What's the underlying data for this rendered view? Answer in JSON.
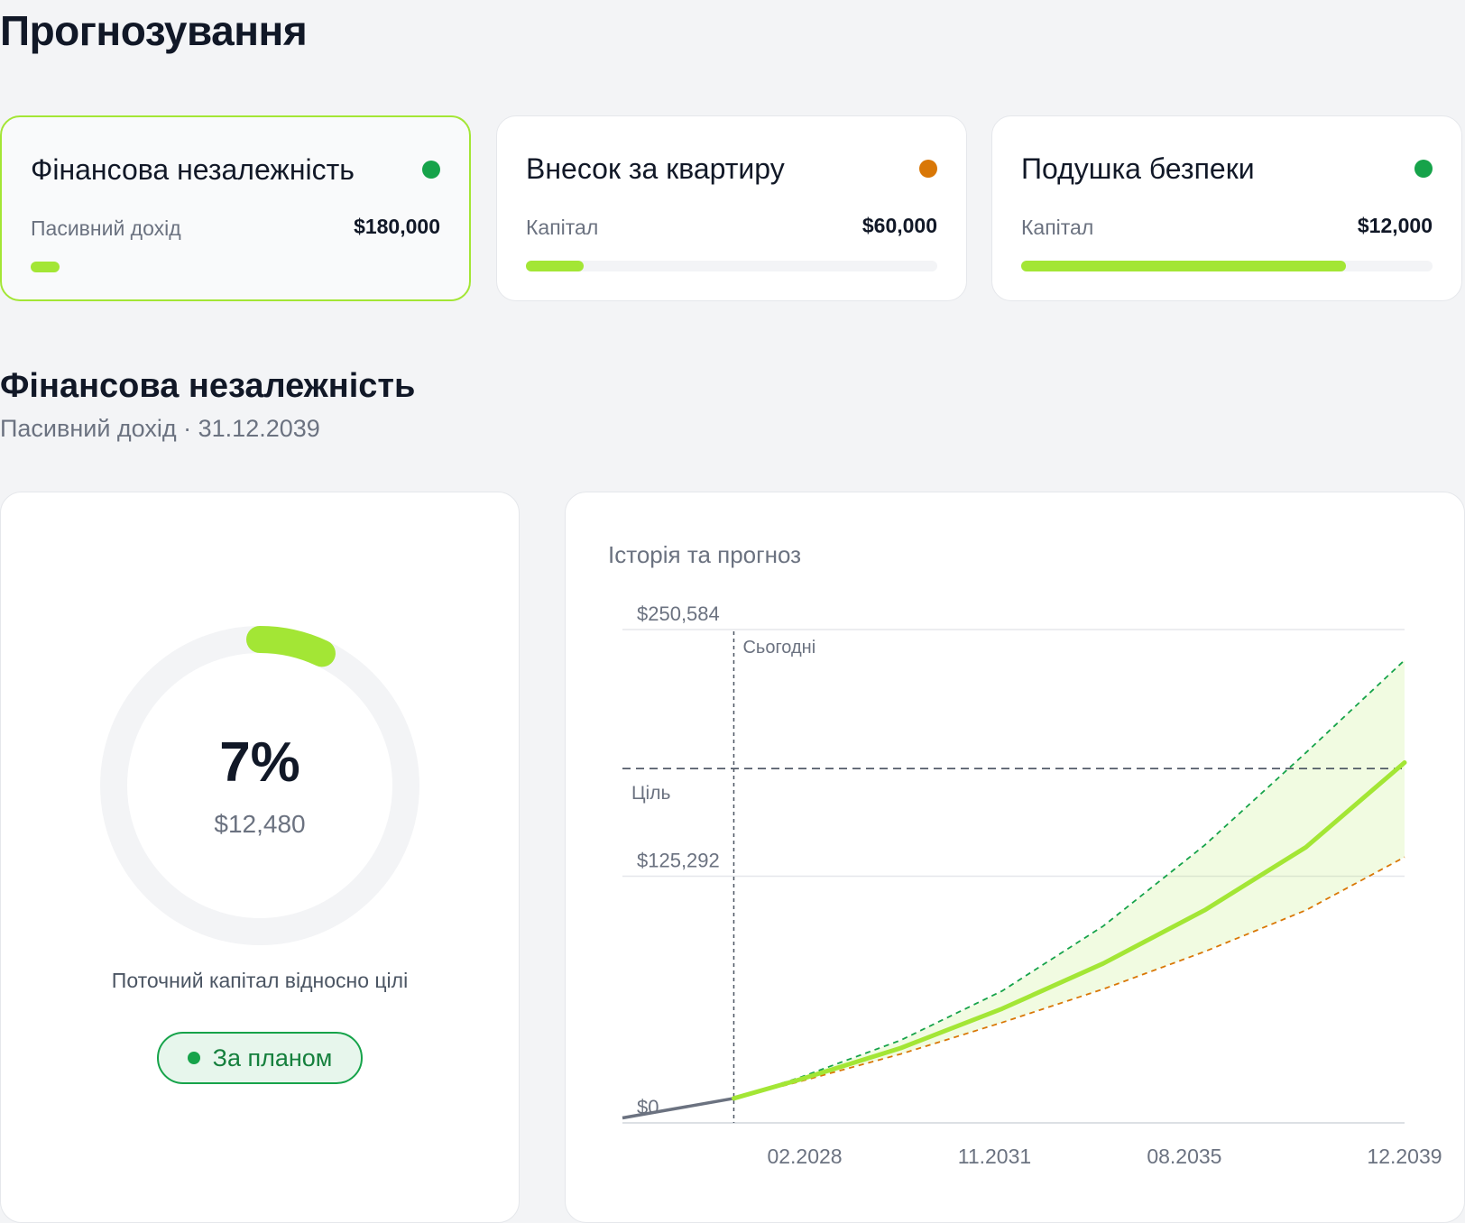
{
  "page": {
    "title": "Прогнозування"
  },
  "goals": [
    {
      "title": "Фінансова незалежність",
      "metric": "Пасивний дохід",
      "value": "$180,000",
      "progress": 0.07,
      "status_color": "#16a34a",
      "selected": true
    },
    {
      "title": "Внесок за квартиру",
      "metric": "Капітал",
      "value": "$60,000",
      "progress": 0.14,
      "status_color": "#d97706",
      "selected": false
    },
    {
      "title": "Подушка безпеки",
      "metric": "Капітал",
      "value": "$12,000",
      "progress": 0.79,
      "status_color": "#16a34a",
      "selected": false
    }
  ],
  "detail": {
    "title": "Фінансова незалежність",
    "subtitle": "Пасивний дохід · 31.12.2039",
    "percent": "7%",
    "percent_value": 0.07,
    "amount": "$12,480",
    "caption": "Поточний капітал відносно цілі",
    "status": "За планом"
  },
  "colors": {
    "accent": "#a3e635",
    "on_track": "#16a34a",
    "warning": "#d97706",
    "history": "#6b7280"
  },
  "chart_data": {
    "type": "line",
    "title": "Історія та прогноз",
    "xlabel": "",
    "ylabel": "",
    "x_ticks": [
      "02.2028",
      "11.2031",
      "08.2035",
      "12.2039"
    ],
    "x_tick_years": [
      2028.1,
      2031.85,
      2035.6,
      2039.95
    ],
    "xlim": [
      2024.5,
      2039.95
    ],
    "y_ticks": [
      {
        "value": 0,
        "label": "$0"
      },
      {
        "value": 125292,
        "label": "$125,292"
      },
      {
        "value": 250584,
        "label": "$250,584"
      }
    ],
    "ylim": [
      0,
      250584
    ],
    "today_year": 2026.7,
    "today_label": "Сьогодні",
    "goal_value": 180000,
    "goal_label": "Ціль",
    "grid": true,
    "series": [
      {
        "kind": "history",
        "x": [
          2024.5,
          2026.7
        ],
        "y": [
          2500,
          12480
        ]
      },
      {
        "kind": "projection",
        "x": [
          2026.7,
          2028,
          2030,
          2032,
          2034,
          2036,
          2038,
          2039.95
        ],
        "y": [
          12480,
          22000,
          38000,
          58000,
          81000,
          108000,
          140000,
          183000
        ]
      },
      {
        "kind": "optimistic",
        "x": [
          2026.7,
          2028,
          2030,
          2032,
          2034,
          2036,
          2038,
          2039.95
        ],
        "y": [
          12480,
          23000,
          42000,
          67000,
          100000,
          141000,
          188000,
          235000
        ]
      },
      {
        "kind": "pessimistic",
        "x": [
          2026.7,
          2028,
          2030,
          2032,
          2034,
          2036,
          2038,
          2039.95
        ],
        "y": [
          12480,
          21000,
          35000,
          51000,
          68000,
          87000,
          108000,
          135000
        ]
      }
    ]
  }
}
